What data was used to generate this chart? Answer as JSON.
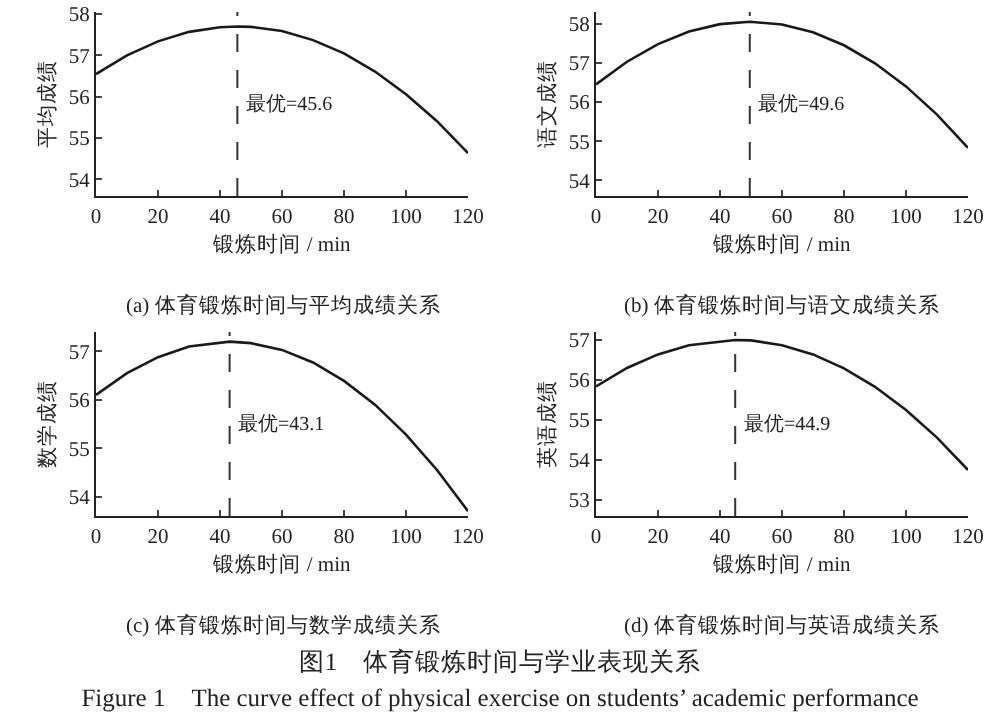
{
  "chart_data": [
    {
      "type": "line",
      "title": "(a) 体育锻炼时间与平均成绩关系",
      "xlabel": "锻炼时间 / min",
      "ylabel": "平均成绩",
      "color": "#1a1a1a",
      "x": [
        0,
        10,
        20,
        30,
        40,
        45.6,
        50,
        60,
        70,
        80,
        90,
        100,
        110,
        120
      ],
      "values": [
        56.55,
        57.0,
        57.34,
        57.57,
        57.68,
        57.7,
        57.69,
        57.59,
        57.37,
        57.05,
        56.61,
        56.06,
        55.41,
        54.64
      ],
      "xlim": [
        0,
        120
      ],
      "xticks": [
        0,
        20,
        40,
        60,
        80,
        100,
        120
      ],
      "ylim": [
        53.6,
        58.05
      ],
      "yticks": [
        54,
        55,
        56,
        57,
        58
      ],
      "ref_lines": [
        {
          "axis": "x",
          "value": 45.6,
          "label": "最优=45.6",
          "line_style": "dashed"
        }
      ]
    },
    {
      "type": "line",
      "title": "(b) 体育锻炼时间与语文成绩关系",
      "xlabel": "锻炼时间 / min",
      "ylabel": "语文成绩",
      "color": "#1a1a1a",
      "x": [
        0,
        10,
        20,
        30,
        40,
        49.6,
        60,
        70,
        80,
        90,
        100,
        110,
        120
      ],
      "values": [
        56.45,
        57.03,
        57.48,
        57.8,
        57.99,
        58.05,
        57.98,
        57.78,
        57.45,
        56.99,
        56.4,
        55.68,
        54.83
      ],
      "xlim": [
        0,
        120
      ],
      "xticks": [
        0,
        20,
        40,
        60,
        80,
        100,
        120
      ],
      "ylim": [
        53.6,
        58.3
      ],
      "yticks": [
        54,
        55,
        56,
        57,
        58
      ],
      "ref_lines": [
        {
          "axis": "x",
          "value": 49.6,
          "label": "最优=49.6",
          "line_style": "dashed"
        }
      ]
    },
    {
      "type": "line",
      "title": "(c) 体育锻炼时间与数学成绩关系",
      "xlabel": "锻炼时间 / min",
      "ylabel": "数学成绩",
      "color": "#1a1a1a",
      "x": [
        0,
        10,
        20,
        30,
        43.1,
        50,
        60,
        70,
        80,
        90,
        100,
        110,
        120
      ],
      "values": [
        56.1,
        56.55,
        56.88,
        57.1,
        57.2,
        57.17,
        57.03,
        56.77,
        56.39,
        55.9,
        55.28,
        54.55,
        53.7
      ],
      "xlim": [
        0,
        120
      ],
      "xticks": [
        0,
        20,
        40,
        60,
        80,
        100,
        120
      ],
      "ylim": [
        53.6,
        57.4
      ],
      "yticks": [
        54,
        55,
        56,
        57
      ],
      "ref_lines": [
        {
          "axis": "x",
          "value": 43.1,
          "label": "最优=43.1",
          "line_style": "dashed"
        }
      ]
    },
    {
      "type": "line",
      "title": "(d) 体育锻炼时间与英语成绩关系",
      "xlabel": "锻炼时间 / min",
      "ylabel": "英语成绩",
      "color": "#1a1a1a",
      "x": [
        0,
        10,
        20,
        30,
        44.9,
        50,
        60,
        70,
        80,
        90,
        100,
        110,
        120
      ],
      "values": [
        55.84,
        56.3,
        56.64,
        56.87,
        57.0,
        56.99,
        56.87,
        56.64,
        56.29,
        55.83,
        55.25,
        54.56,
        53.75
      ],
      "xlim": [
        0,
        120
      ],
      "xticks": [
        0,
        20,
        40,
        60,
        80,
        100,
        120
      ],
      "ylim": [
        52.6,
        57.2
      ],
      "yticks": [
        53,
        54,
        55,
        56,
        57
      ],
      "ref_lines": [
        {
          "axis": "x",
          "value": 44.9,
          "label": "最优=44.9",
          "line_style": "dashed"
        }
      ],
      "annotations": [
        "图1　体育锻炼时间与学业表现关系",
        "Figure 1　The curve effect of physical exercise on students’ academic performance"
      ]
    }
  ]
}
